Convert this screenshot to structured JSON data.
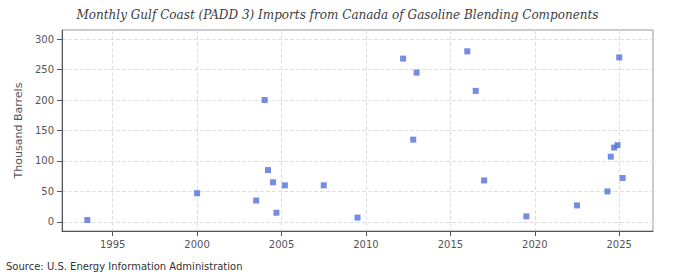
{
  "chart_data": {
    "type": "scatter",
    "title": "Monthly Gulf Coast (PADD 3) Imports from Canada of Gasoline Blending Components",
    "ylabel": "Thousand Barrels",
    "annotations": [
      "Source: U.S. Energy Information Administration"
    ],
    "x": [
      1993.5,
      2000.0,
      2003.5,
      2004.0,
      2004.2,
      2004.5,
      2004.7,
      2005.2,
      2007.5,
      2009.5,
      2012.2,
      2012.8,
      2013.0,
      2016.0,
      2016.5,
      2017.0,
      2019.5,
      2022.5,
      2024.3,
      2024.5,
      2024.7,
      2024.9,
      2025.0,
      2025.2
    ],
    "values": [
      3,
      47,
      35,
      200,
      85,
      65,
      15,
      60,
      60,
      7,
      268,
      135,
      245,
      280,
      215,
      68,
      9,
      27,
      50,
      107,
      122,
      126,
      270,
      72
    ],
    "marker": "square",
    "xlim": [
      1992,
      2027
    ],
    "xticks": [
      1995,
      2000,
      2005,
      2010,
      2015,
      2020,
      2025
    ],
    "ylim": [
      -15,
      315
    ],
    "yticks": [
      0,
      50,
      100,
      150,
      200,
      250,
      300
    ],
    "grid": true
  }
}
